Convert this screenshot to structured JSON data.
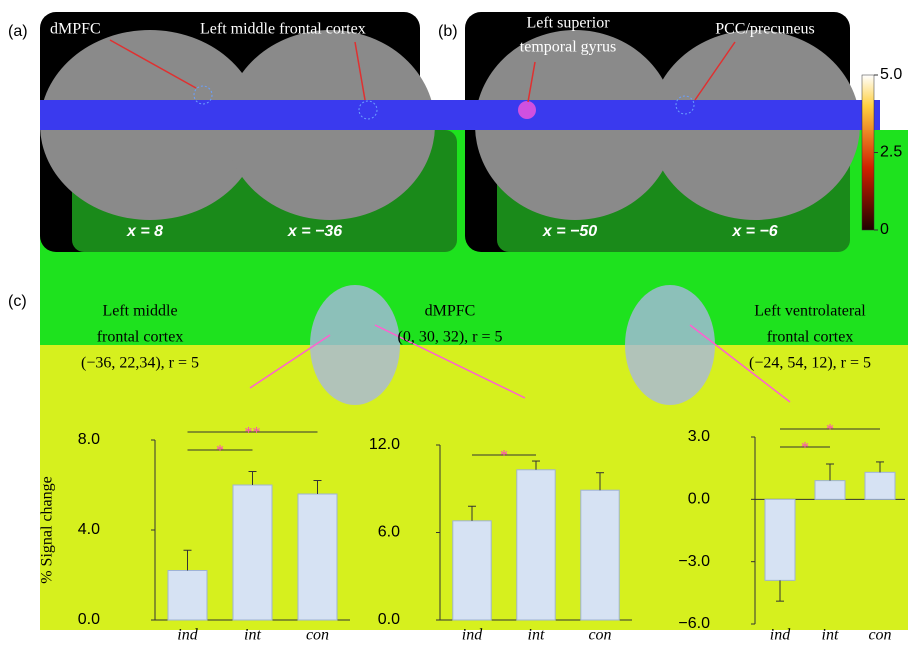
{
  "panel_a": {
    "label": "(a)",
    "regions": [
      [
        "dMPFC"
      ],
      [
        "Left middle frontal cortex"
      ]
    ],
    "slices": [
      "x = 8",
      "x = −36"
    ]
  },
  "panel_b": {
    "label": "(b)",
    "regions": [
      [
        "Left superior",
        "temporal gyrus"
      ],
      [
        "PCC/precuneus"
      ]
    ],
    "slices": [
      "x = −50",
      "x = −6"
    ]
  },
  "colorbar": {
    "lim": [
      0,
      5
    ],
    "ticks": [
      {
        "value": 5,
        "label": "5.0"
      },
      2.5,
      0
    ]
  },
  "panel_c": {
    "label": "(c)",
    "ylabel": "% Signal change"
  },
  "chart_data": [
    {
      "type": "bar",
      "title": [
        "Left middle",
        "frontal cortex",
        "(−36, 22,34), r = 5"
      ],
      "categories": [
        "ind",
        "int",
        "con"
      ],
      "values": [
        2.2,
        6.0,
        5.6
      ],
      "errors": [
        0.9,
        0.6,
        0.6
      ],
      "color": "#d6e2f3",
      "ylim": [
        0,
        8
      ],
      "yticks": [
        {
          "value": 0,
          "label": "0.0"
        },
        {
          "value": 4,
          "label": "4.0"
        },
        {
          "value": 8,
          "label": "8.0"
        }
      ],
      "significance": [
        "*",
        "**"
      ]
    },
    {
      "type": "bar",
      "title": [
        "dMPFC",
        "(0, 30, 32), r = 5"
      ],
      "categories": [
        "ind",
        "int",
        "con"
      ],
      "values": [
        6.8,
        10.3,
        8.9
      ],
      "errors": [
        1.0,
        0.6,
        1.2
      ],
      "color": "#d6e2f3",
      "ylim": [
        0,
        12
      ],
      "yticks": [
        {
          "value": 0,
          "label": "0.0"
        },
        {
          "value": 6,
          "label": "6.0"
        },
        {
          "value": 12,
          "label": "12.0"
        }
      ],
      "significance": [
        "*"
      ]
    },
    {
      "type": "bar",
      "title": [
        "Left ventrolateral",
        "frontal cortex",
        "(−24, 54, 12), r = 5"
      ],
      "categories": [
        "ind",
        "int",
        "con"
      ],
      "values": [
        -3.9,
        0.9,
        1.3
      ],
      "errors": [
        1.0,
        0.8,
        0.5
      ],
      "color": "#d6e2f3",
      "ylim": [
        -6,
        3
      ],
      "yticks": [
        {
          "value": -6,
          "label": "−6.0"
        },
        {
          "value": -3,
          "label": "−3.0"
        },
        {
          "value": 0,
          "label": "0.0"
        },
        {
          "value": 3,
          "label": "3.0"
        }
      ],
      "significance": [
        "*",
        "*"
      ]
    }
  ]
}
